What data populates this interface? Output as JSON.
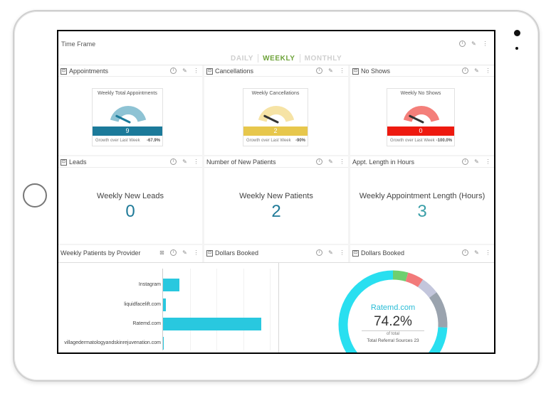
{
  "time_frame": {
    "title": "Time Frame",
    "tabs": [
      "DAILY",
      "WEEKLY",
      "MONTHLY"
    ],
    "active_tab": "WEEKLY"
  },
  "gauges": [
    {
      "title": "Appointments",
      "label": "Weekly Total Appointments",
      "value": "9",
      "color": "#1b7a9a",
      "needle_color": "#1b7a9a",
      "arc_color": "#8ec3d4",
      "growth_label": "Growth over Last Week",
      "growth": "-67.9%"
    },
    {
      "title": "Cancellations",
      "label": "Weekly Cancellations",
      "value": "2",
      "color": "#e7c74c",
      "needle_color": "#333333",
      "arc_color": "#f6e3a5",
      "growth_label": "Growth over Last Week",
      "growth": "-90%"
    },
    {
      "title": "No Shows",
      "label": "Weekly No Shows",
      "value": "0",
      "color": "#ee1a10",
      "needle_color": "#333333",
      "arc_color": "#f47f7a",
      "growth_label": "Growth over Last Week",
      "growth": "-100.0%"
    }
  ],
  "stats": [
    {
      "title": "Leads",
      "label": "Weekly New Leads",
      "value": "0"
    },
    {
      "title": "Number of New Patients",
      "label": "Weekly New Patients",
      "value": "2"
    },
    {
      "title": "Appt. Length in Hours",
      "label": "Weekly Appointment Length (Hours)",
      "value": "3"
    }
  ],
  "bottom_headers": [
    "Weekly Patients by Provider",
    "Dollars Booked",
    "Dollars Booked"
  ],
  "chart_data": [
    {
      "type": "bar",
      "categories": [
        "Instagram",
        "liquidfacelift.com",
        "Ratemd.com",
        "villagedermatologyandskinrejuvenation.com"
      ],
      "values": [
        1.8,
        0.3,
        11,
        0.1
      ],
      "xlim": [
        0,
        12
      ],
      "colors": [
        "#29c8df"
      ]
    },
    {
      "type": "pie",
      "center_title": "Ratemd.com",
      "center_value": "74.2%",
      "center_sub": "of total",
      "total_label": "Total Referral Sources",
      "total_value": "23",
      "slices": [
        {
          "value": 74.2,
          "color": "#29dff0"
        },
        {
          "value": 4.5,
          "color": "#6fcf6f"
        },
        {
          "value": 4.8,
          "color": "#f27a7a"
        },
        {
          "value": 5.5,
          "color": "#c3c6dc"
        },
        {
          "value": 11.0,
          "color": "#9aa3ae"
        }
      ]
    }
  ],
  "icons": {
    "info": "info-icon",
    "edit": "pencil-icon",
    "more": "more-vert-icon",
    "chart": "chart-icon"
  }
}
